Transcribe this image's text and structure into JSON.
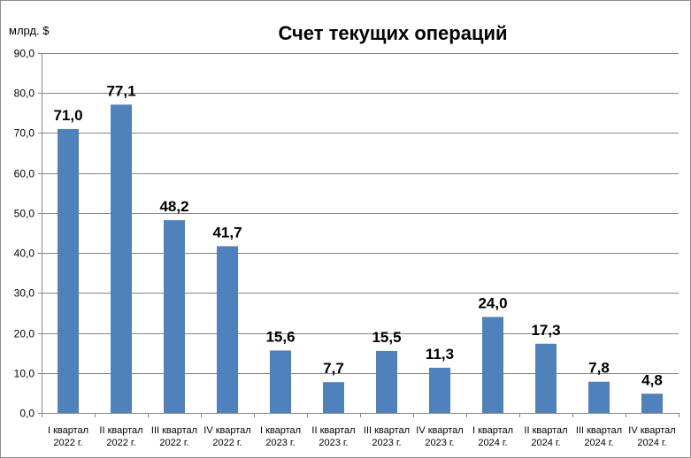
{
  "chart_data": {
    "type": "bar",
    "title": "Счет текущих операций",
    "ylabel": "млрд. $",
    "xlabel": "",
    "ylim": [
      0,
      90
    ],
    "ytick_step": 10,
    "ytick_labels": [
      "0,0",
      "10,0",
      "20,0",
      "30,0",
      "40,0",
      "50,0",
      "60,0",
      "70,0",
      "80,0",
      "90,0"
    ],
    "grid": true,
    "legend": "none",
    "bar_color": "#4f81bd",
    "categories": [
      [
        "I квартал",
        "2022 г."
      ],
      [
        "II квартал",
        "2022 г."
      ],
      [
        "III квартал",
        "2022 г."
      ],
      [
        "IV квартал",
        "2022 г."
      ],
      [
        "I квартал",
        "2023 г."
      ],
      [
        "II квартал",
        "2023 г."
      ],
      [
        "III квартал",
        "2023 г."
      ],
      [
        "IV квартал",
        "2023 г."
      ],
      [
        "I квартал",
        "2024 г."
      ],
      [
        "II квартал",
        "2024 г."
      ],
      [
        "III квартал",
        "2024 г."
      ],
      [
        "IV квартал",
        "2024 г."
      ]
    ],
    "values": [
      71.0,
      77.1,
      48.2,
      41.7,
      15.6,
      7.7,
      15.5,
      11.3,
      24.0,
      17.3,
      7.8,
      4.8
    ],
    "data_labels": [
      "71,0",
      "77,1",
      "48,2",
      "41,7",
      "15,6",
      "7,7",
      "15,5",
      "11,3",
      "24,0",
      "17,3",
      "7,8",
      "4,8"
    ]
  }
}
